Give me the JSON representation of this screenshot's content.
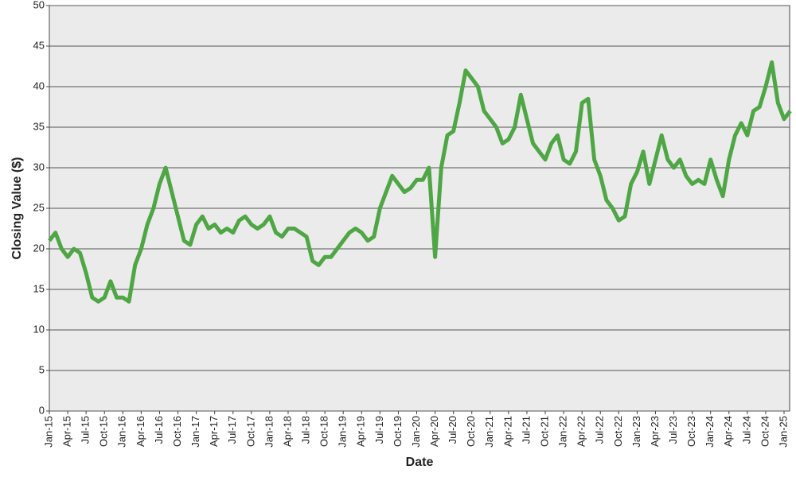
{
  "chart_data": {
    "type": "line",
    "xlabel": "Date",
    "ylabel": "Closing Value ($)",
    "x": [
      "Jan-15",
      "Feb-15",
      "Mar-15",
      "Apr-15",
      "May-15",
      "Jun-15",
      "Jul-15",
      "Aug-15",
      "Sep-15",
      "Oct-15",
      "Nov-15",
      "Dec-15",
      "Jan-16",
      "Feb-16",
      "Mar-16",
      "Apr-16",
      "May-16",
      "Jun-16",
      "Jul-16",
      "Aug-16",
      "Sep-16",
      "Oct-16",
      "Nov-16",
      "Dec-16",
      "Jan-17",
      "Feb-17",
      "Mar-17",
      "Apr-17",
      "May-17",
      "Jun-17",
      "Jul-17",
      "Aug-17",
      "Sep-17",
      "Oct-17",
      "Nov-17",
      "Dec-17",
      "Jan-18",
      "Feb-18",
      "Mar-18",
      "Apr-18",
      "May-18",
      "Jun-18",
      "Jul-18",
      "Aug-18",
      "Sep-18",
      "Oct-18",
      "Nov-18",
      "Dec-18",
      "Jan-19",
      "Feb-19",
      "Mar-19",
      "Apr-19",
      "May-19",
      "Jun-19",
      "Jul-19",
      "Aug-19",
      "Sep-19",
      "Oct-19",
      "Nov-19",
      "Dec-19",
      "Jan-20",
      "Feb-20",
      "Mar-20",
      "Apr-20",
      "May-20",
      "Jun-20",
      "Jul-20",
      "Aug-20",
      "Sep-20",
      "Oct-20",
      "Nov-20",
      "Dec-20",
      "Jan-21",
      "Feb-21",
      "Mar-21",
      "Apr-21",
      "May-21",
      "Jun-21",
      "Jul-21",
      "Aug-21",
      "Sep-21",
      "Oct-21",
      "Nov-21",
      "Dec-21",
      "Jan-22",
      "Feb-22",
      "Mar-22",
      "Apr-22",
      "May-22",
      "Jun-22",
      "Jul-22",
      "Aug-22",
      "Sep-22",
      "Oct-22",
      "Nov-22",
      "Dec-22",
      "Jan-23",
      "Feb-23",
      "Mar-23",
      "Apr-23",
      "May-23",
      "Jun-23",
      "Jul-23",
      "Aug-23",
      "Sep-23",
      "Oct-23",
      "Nov-23",
      "Dec-23",
      "Jan-24",
      "Feb-24",
      "Mar-24",
      "Apr-24",
      "May-24",
      "Jun-24",
      "Jul-24",
      "Aug-24",
      "Sep-24",
      "Oct-24",
      "Nov-24",
      "Dec-24",
      "Jan-25",
      "Feb-25"
    ],
    "xticks": [
      "Jan-15",
      "Apr-15",
      "Jul-15",
      "Oct-15",
      "Jan-16",
      "Apr-16",
      "Jul-16",
      "Oct-16",
      "Jan-17",
      "Apr-17",
      "Jul-17",
      "Oct-17",
      "Jan-18",
      "Apr-18",
      "Jul-18",
      "Oct-18",
      "Jan-19",
      "Apr-19",
      "Jul-19",
      "Oct-19",
      "Jan-20",
      "Apr-20",
      "Jul-20",
      "Oct-20",
      "Jan-21",
      "Apr-21",
      "Jul-21",
      "Oct-21",
      "Jan-22",
      "Apr-22",
      "Jul-22",
      "Oct-22",
      "Jan-23",
      "Apr-23",
      "Jul-23",
      "Oct-23",
      "Jan-24",
      "Apr-24",
      "Jul-24",
      "Oct-24",
      "Jan-25"
    ],
    "series": [
      {
        "color": "#4ea644",
        "values": [
          21,
          22,
          20,
          19,
          20,
          19.5,
          17,
          14,
          13.5,
          14,
          16,
          14,
          14,
          13.5,
          18,
          20,
          23,
          25,
          28,
          30,
          27,
          24,
          21,
          20.5,
          23,
          24,
          22.5,
          23,
          22,
          22.5,
          22,
          23.5,
          24,
          23,
          22.5,
          23,
          24,
          22,
          21.5,
          22.5,
          22.5,
          22,
          21.5,
          18.5,
          18,
          19,
          19,
          20,
          21,
          22,
          22.5,
          22,
          21,
          21.5,
          25,
          27,
          29,
          28,
          27,
          27.5,
          28.5,
          28.5,
          30,
          19,
          30,
          34,
          34.5,
          38,
          42,
          41,
          40,
          37,
          36,
          35,
          33,
          33.5,
          35,
          39,
          36,
          33,
          32,
          31,
          33,
          34,
          31,
          30.5,
          32,
          38,
          38.5,
          31,
          29,
          26,
          25,
          23.5,
          24,
          28,
          29.5,
          32,
          28,
          31,
          34,
          31,
          30,
          31,
          29,
          28,
          28.5,
          28,
          31,
          28.5,
          26.5,
          31,
          34,
          35.5,
          34,
          37,
          37.5,
          40,
          43,
          38,
          36,
          37
        ]
      }
    ],
    "ylim": [
      0,
      50
    ],
    "yticks": [
      0,
      5,
      10,
      15,
      20,
      25,
      30,
      35,
      40,
      45,
      50
    ],
    "grid": true
  }
}
